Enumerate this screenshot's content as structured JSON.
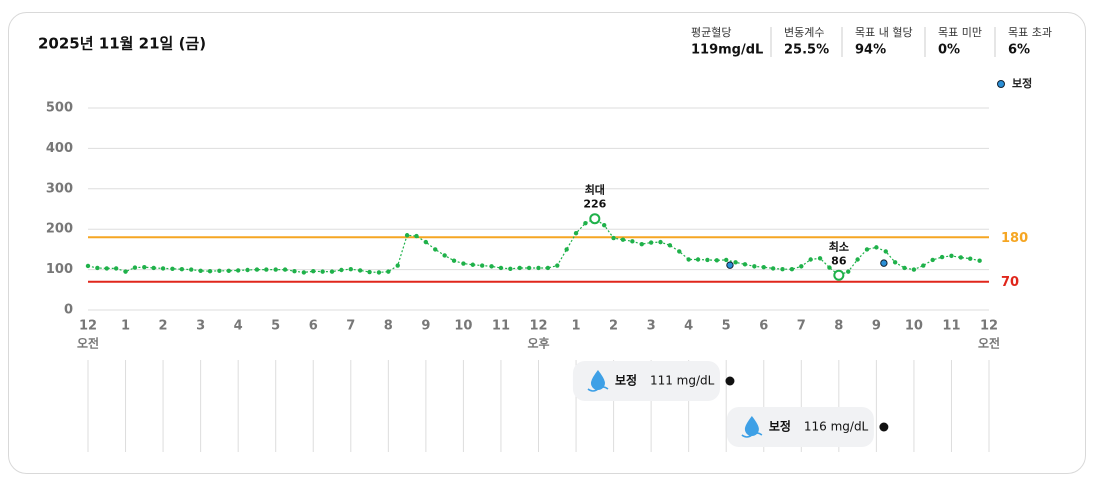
{
  "header": {
    "title": "2025년 11월 21일 (금)",
    "stats": [
      {
        "label": "평균혈당",
        "value": "119mg/dL"
      },
      {
        "label": "변동계수",
        "value": "25.5%"
      },
      {
        "label": "목표 내 혈당",
        "value": "94%"
      },
      {
        "label": "목표 미만",
        "value": "0%"
      },
      {
        "label": "목표 초과",
        "value": "6%"
      }
    ]
  },
  "chart_data": {
    "type": "dot-line",
    "series": [
      {
        "name": "혈당",
        "color": "#1fb14a",
        "x": [
          0,
          0.25,
          0.5,
          0.75,
          1,
          1.25,
          1.5,
          1.75,
          2,
          2.25,
          2.5,
          2.75,
          3,
          3.25,
          3.5,
          3.75,
          4,
          4.25,
          4.5,
          4.75,
          5,
          5.25,
          5.5,
          5.75,
          6,
          6.25,
          6.5,
          6.75,
          7,
          7.25,
          7.5,
          7.75,
          8,
          8.25,
          8.5,
          8.75,
          9,
          9.25,
          9.5,
          9.75,
          10,
          10.25,
          10.5,
          10.75,
          11,
          11.25,
          11.5,
          11.75,
          12,
          12.25,
          12.5,
          12.75,
          13,
          13.25,
          13.5,
          13.75,
          14,
          14.25,
          14.5,
          14.75,
          15,
          15.25,
          15.5,
          15.75,
          16,
          16.25,
          16.5,
          16.75,
          17,
          17.25,
          17.5,
          17.75,
          18,
          18.25,
          18.5,
          18.75,
          19,
          19.25,
          19.5,
          19.75,
          20,
          20.25,
          20.5,
          20.75,
          21,
          21.25,
          21.5,
          21.75,
          22,
          22.25,
          22.5,
          22.75,
          23,
          23.25,
          23.5,
          23.75
        ],
        "values": [
          109,
          104,
          103,
          103,
          95,
          105,
          106,
          104,
          103,
          102,
          101,
          100,
          97,
          96,
          97,
          97,
          98,
          99,
          100,
          100,
          100,
          100,
          96,
          93,
          96,
          95,
          95,
          99,
          101,
          98,
          94,
          93,
          95,
          110,
          185,
          183,
          168,
          150,
          135,
          122,
          115,
          112,
          110,
          108,
          104,
          102,
          104,
          104,
          104,
          104,
          110,
          150,
          190,
          215,
          226,
          210,
          178,
          174,
          170,
          163,
          167,
          168,
          160,
          145,
          125,
          125,
          124,
          123,
          124,
          118,
          113,
          108,
          106,
          103,
          101,
          101,
          108,
          125,
          128,
          105,
          86,
          95,
          125,
          150,
          155,
          145,
          118,
          104,
          100,
          110,
          124,
          131,
          134,
          130,
          127,
          122
        ]
      }
    ],
    "calibrations": [
      {
        "name": "보정",
        "time": 17.1,
        "value": 111,
        "value_label": "111 mg/dL",
        "color": "#2b8fd6"
      },
      {
        "name": "보정",
        "time": 21.2,
        "value": 116,
        "value_label": "116 mg/dL",
        "color": "#2b8fd6"
      }
    ],
    "legend": {
      "name": "보정",
      "color": "#2b8fd6"
    },
    "targets": [
      {
        "value": 180,
        "color": "#f5a623"
      },
      {
        "value": 70,
        "color": "#e0261b"
      }
    ],
    "annotations": [
      {
        "label": "최대",
        "x": 13.5,
        "value": 226
      },
      {
        "label": "최소",
        "x": 20,
        "value": 86
      }
    ],
    "xlim": [
      0,
      24
    ],
    "ylim": [
      0,
      500
    ],
    "yticks": [
      0,
      100,
      200,
      300,
      400,
      500
    ],
    "xticks": [
      {
        "value": 0,
        "label": "12"
      },
      1,
      2,
      3,
      4,
      5,
      6,
      7,
      8,
      9,
      10,
      11,
      {
        "value": 12,
        "label": "12"
      },
      {
        "value": 13,
        "label": "1"
      },
      {
        "value": 14,
        "label": "2"
      },
      {
        "value": 15,
        "label": "3"
      },
      {
        "value": 16,
        "label": "4"
      },
      {
        "value": 17,
        "label": "5"
      },
      {
        "value": 18,
        "label": "6"
      },
      {
        "value": 19,
        "label": "7"
      },
      {
        "value": 20,
        "label": "8"
      },
      {
        "value": 21,
        "label": "9"
      },
      {
        "value": 22,
        "label": "10"
      },
      {
        "value": 23,
        "label": "11"
      },
      {
        "value": 24,
        "label": "12"
      }
    ],
    "x_period_labels": [
      {
        "value": 0,
        "label": "오전"
      },
      {
        "value": 12,
        "label": "오후"
      },
      {
        "value": 24,
        "label": "오전"
      }
    ],
    "grid": true
  }
}
